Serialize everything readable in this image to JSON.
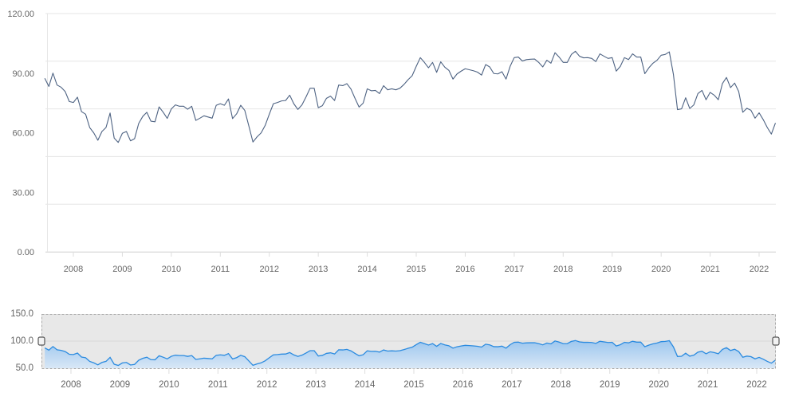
{
  "chart_data": [
    {
      "type": "line",
      "title": "",
      "xlabel": "",
      "ylabel": "",
      "ylim": [
        0,
        120
      ],
      "y_tick_labels": [
        "0.00",
        "30.00",
        "60.00",
        "90.00",
        "120.00"
      ],
      "y_ticks": [
        0,
        30,
        60,
        90,
        120
      ],
      "x_tick_labels": [
        "2008",
        "2009",
        "2010",
        "2011",
        "2012",
        "2013",
        "2014",
        "2015",
        "2016",
        "2017",
        "2018",
        "2019",
        "2020",
        "2021",
        "2022"
      ],
      "grid": true,
      "line_color": "#4d6282",
      "x": [
        "2007-06",
        "2007-07",
        "2007-08",
        "2007-09",
        "2007-10",
        "2007-11",
        "2007-12",
        "2008-01",
        "2008-02",
        "2008-03",
        "2008-04",
        "2008-05",
        "2008-06",
        "2008-07",
        "2008-08",
        "2008-09",
        "2008-10",
        "2008-11",
        "2008-12",
        "2009-01",
        "2009-02",
        "2009-03",
        "2009-04",
        "2009-05",
        "2009-06",
        "2009-07",
        "2009-08",
        "2009-09",
        "2009-10",
        "2009-11",
        "2009-12",
        "2010-01",
        "2010-02",
        "2010-03",
        "2010-04",
        "2010-05",
        "2010-06",
        "2010-07",
        "2010-08",
        "2010-09",
        "2010-10",
        "2010-11",
        "2010-12",
        "2011-01",
        "2011-02",
        "2011-03",
        "2011-04",
        "2011-05",
        "2011-06",
        "2011-07",
        "2011-08",
        "2011-09",
        "2011-10",
        "2011-11",
        "2011-12",
        "2012-01",
        "2012-02",
        "2012-03",
        "2012-04",
        "2012-05",
        "2012-06",
        "2012-07",
        "2012-08",
        "2012-09",
        "2012-10",
        "2012-11",
        "2012-12",
        "2013-01",
        "2013-02",
        "2013-03",
        "2013-04",
        "2013-05",
        "2013-06",
        "2013-07",
        "2013-08",
        "2013-09",
        "2013-10",
        "2013-11",
        "2013-12",
        "2014-01",
        "2014-02",
        "2014-03",
        "2014-04",
        "2014-05",
        "2014-06",
        "2014-07",
        "2014-08",
        "2014-09",
        "2014-10",
        "2014-11",
        "2014-12",
        "2015-01",
        "2015-02",
        "2015-03",
        "2015-04",
        "2015-05",
        "2015-06",
        "2015-07",
        "2015-08",
        "2015-09",
        "2015-10",
        "2015-11",
        "2015-12",
        "2016-01",
        "2016-02",
        "2016-03",
        "2016-04",
        "2016-05",
        "2016-06",
        "2016-07",
        "2016-08",
        "2016-09",
        "2016-10",
        "2016-11",
        "2016-12",
        "2017-01",
        "2017-02",
        "2017-03",
        "2017-04",
        "2017-05",
        "2017-06",
        "2017-07",
        "2017-08",
        "2017-09",
        "2017-10",
        "2017-11",
        "2017-12",
        "2018-01",
        "2018-02",
        "2018-03",
        "2018-04",
        "2018-05",
        "2018-06",
        "2018-07",
        "2018-08",
        "2018-09",
        "2018-10",
        "2018-11",
        "2018-12",
        "2019-01",
        "2019-02",
        "2019-03",
        "2019-04",
        "2019-05",
        "2019-06",
        "2019-07",
        "2019-08",
        "2019-09",
        "2019-10",
        "2019-11",
        "2019-12",
        "2020-01",
        "2020-02",
        "2020-03",
        "2020-04",
        "2020-05",
        "2020-06",
        "2020-07",
        "2020-08",
        "2020-09",
        "2020-10",
        "2020-11",
        "2020-12",
        "2021-01",
        "2021-02",
        "2021-03",
        "2021-04",
        "2021-05",
        "2021-06",
        "2021-07",
        "2021-08",
        "2021-09",
        "2021-10",
        "2021-11",
        "2021-12",
        "2022-01",
        "2022-02",
        "2022-03",
        "2022-04",
        "2022-05"
      ],
      "series": [
        {
          "values": [
            87.4,
            83.3,
            90.0,
            84.0,
            82.9,
            80.7,
            75.7,
            75.2,
            77.9,
            70.6,
            69.3,
            62.6,
            59.9,
            56.2,
            60.6,
            62.6,
            69.9,
            57.3,
            55.1,
            59.7,
            60.6,
            55.9,
            57.0,
            64.6,
            68.2,
            70.3,
            65.8,
            65.5,
            73.0,
            70.3,
            67.2,
            72.0,
            74.0,
            73.3,
            73.3,
            71.8,
            73.3,
            66.2,
            67.3,
            68.5,
            67.9,
            67.3,
            73.8,
            74.6,
            73.8,
            77.0,
            67.1,
            69.5,
            73.8,
            71.2,
            63.3,
            55.3,
            57.9,
            59.9,
            63.7,
            69.3,
            74.6,
            75.2,
            76.0,
            76.2,
            78.9,
            74.6,
            71.7,
            74.0,
            78.0,
            82.4,
            82.4,
            72.6,
            73.6,
            77.3,
            78.4,
            76.2,
            84.0,
            83.7,
            84.7,
            82.0,
            77.3,
            72.9,
            74.9,
            82.1,
            81.1,
            81.3,
            79.7,
            83.7,
            81.6,
            82.1,
            81.6,
            82.4,
            84.3,
            86.7,
            88.7,
            93.4,
            97.8,
            95.4,
            92.7,
            95.4,
            90.4,
            95.7,
            93.0,
            91.4,
            87.0,
            89.6,
            91.0,
            92.2,
            91.7,
            91.2,
            90.5,
            89.0,
            94.3,
            93.1,
            89.8,
            89.6,
            90.7,
            87.0,
            93.4,
            97.8,
            98.1,
            96.1,
            96.8,
            97.0,
            97.1,
            95.4,
            93.1,
            96.5,
            95.0,
            100.3,
            98.1,
            95.4,
            95.4,
            99.4,
            101.0,
            98.5,
            97.7,
            97.8,
            97.4,
            95.8,
            99.7,
            98.5,
            97.4,
            97.8,
            91.0,
            93.4,
            97.8,
            96.8,
            99.7,
            98.1,
            98.1,
            89.7,
            92.7,
            95.0,
            96.5,
            99.0,
            99.4,
            100.7,
            89.4,
            71.6,
            72.0,
            77.6,
            72.2,
            74.0,
            79.7,
            81.3,
            76.6,
            80.3,
            78.9,
            76.6,
            84.7,
            87.8,
            82.7,
            85.0,
            80.7,
            70.3,
            72.3,
            71.3,
            67.3,
            70.0,
            66.6,
            62.6,
            59.3,
            64.9
          ]
        }
      ]
    },
    {
      "type": "area",
      "role": "navigator",
      "ylim": [
        50,
        150
      ],
      "y_tick_labels": [
        "50.0",
        "100.0",
        "150.0"
      ],
      "y_ticks": [
        50,
        100,
        150
      ],
      "x_tick_labels": [
        "2008",
        "2009",
        "2010",
        "2011",
        "2012",
        "2013",
        "2014",
        "2015",
        "2016",
        "2017",
        "2018",
        "2019",
        "2020",
        "2021",
        "2022"
      ],
      "selected_range": [
        "2007-06",
        "2022-05"
      ],
      "line_color": "#2b8be0",
      "fill_top_color": "#9cc6ee",
      "fill_bottom_color": "#d8e7f6",
      "mask_color": "#e8e8e8"
    }
  ]
}
